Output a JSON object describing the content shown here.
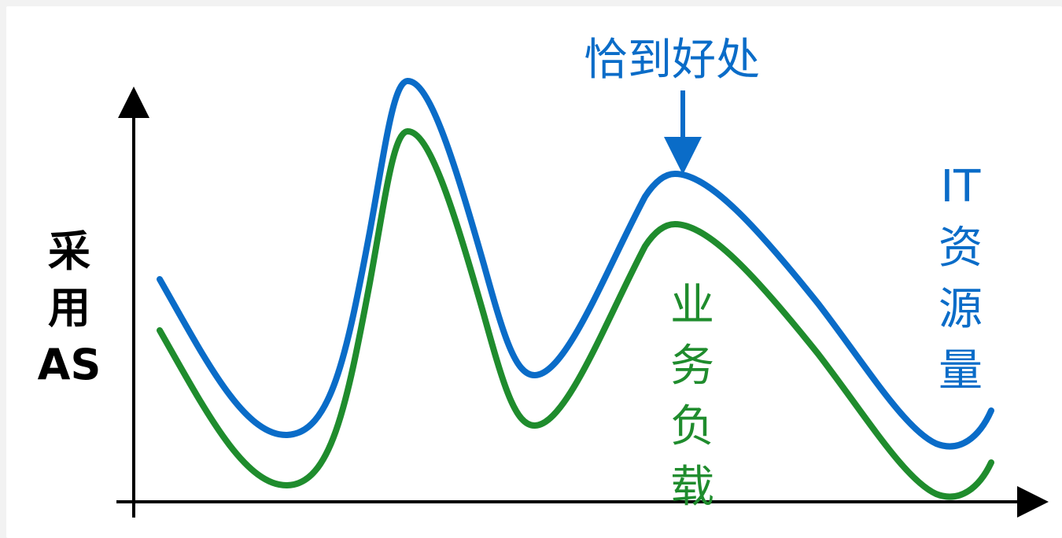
{
  "colors": {
    "blue": "#0a6cc8",
    "green": "#1f8c2d",
    "axis": "#000000"
  },
  "y_axis_label": [
    "采",
    "用",
    "AS"
  ],
  "annotation": {
    "text": "恰到好处"
  },
  "labels": {
    "it_resources": [
      "IT",
      "资",
      "源",
      "量"
    ],
    "business_load": [
      "业",
      "务",
      "负",
      "载"
    ]
  },
  "curves": {
    "it_resources": {
      "name": "IT资源量"
    },
    "business_load": {
      "name": "业务负载"
    }
  }
}
